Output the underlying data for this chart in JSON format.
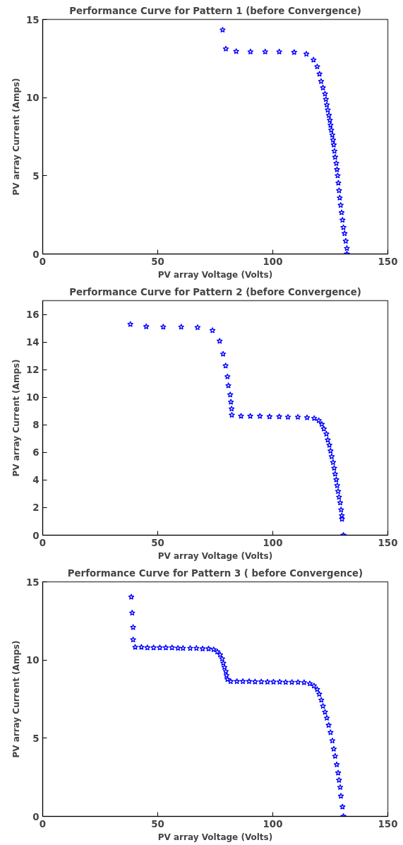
{
  "chart_data": [
    {
      "type": "scatter",
      "title": "Performance Curve for Pattern 1 (before Convergence)",
      "xlabel": "PV array Voltage (Volts)",
      "ylabel": "PV array Current (Amps)",
      "xlim": [
        0,
        150
      ],
      "ylim": [
        0,
        15
      ],
      "xticks": [
        0,
        50,
        100,
        150
      ],
      "yticks": [
        0,
        5,
        10,
        15
      ],
      "grid": false,
      "marker": "star",
      "series": [
        {
          "color": "#0000ff",
          "x": [
            78.2,
            79.6,
            84.1,
            90.3,
            96.7,
            102.8,
            109.3,
            114.6,
            117.7,
            119.3,
            120.3,
            121.0,
            121.8,
            122.7,
            123.1,
            123.5,
            123.9,
            124.4,
            124.8,
            125.1,
            125.4,
            125.9,
            126.2,
            126.5,
            126.8,
            127.1,
            127.6,
            127.9,
            128.2,
            128.5,
            128.8,
            129.1,
            129.5,
            129.9,
            130.3,
            130.7,
            131.2,
            131.7,
            132.2,
            132.2
          ],
          "values": [
            14.33,
            13.12,
            12.96,
            12.93,
            12.93,
            12.93,
            12.9,
            12.79,
            12.41,
            11.98,
            11.51,
            11.04,
            10.63,
            10.24,
            9.89,
            9.54,
            9.21,
            8.87,
            8.55,
            8.24,
            7.92,
            7.61,
            7.29,
            6.98,
            6.58,
            6.19,
            5.8,
            5.4,
            5.01,
            4.54,
            4.06,
            3.59,
            3.12,
            2.65,
            2.17,
            1.7,
            1.31,
            0.83,
            0.36,
            0
          ]
        }
      ]
    },
    {
      "type": "scatter",
      "title": "Performance Curve for Pattern 2 (before Convergence)",
      "xlabel": "PV array Voltage (Volts)",
      "ylabel": "PV array Current (Amps)",
      "xlim": [
        0,
        150
      ],
      "ylim": [
        0,
        17
      ],
      "xticks": [
        0,
        50,
        100,
        150
      ],
      "yticks": [
        0,
        2,
        4,
        6,
        8,
        10,
        12,
        14,
        16
      ],
      "grid": false,
      "marker": "star",
      "series": [
        {
          "color": "#0000ff",
          "x": [
            38.1,
            45.0,
            52.4,
            60.2,
            67.3,
            73.8,
            76.9,
            78.4,
            79.5,
            80.3,
            80.7,
            81.5,
            81.8,
            82.1,
            82.2,
            86.2,
            90.2,
            94.4,
            98.6,
            102.8,
            106.6,
            110.9,
            114.9,
            118.0,
            120.0,
            121.3,
            122.2,
            123.3,
            123.9,
            124.6,
            125.1,
            125.6,
            126.2,
            126.7,
            127.1,
            127.6,
            128.0,
            128.4,
            128.8,
            129.3,
            129.7,
            130.0,
            130.1,
            130.7
          ],
          "values": [
            15.29,
            15.12,
            15.09,
            15.09,
            15.06,
            14.84,
            14.07,
            13.13,
            12.28,
            11.49,
            10.84,
            10.18,
            9.65,
            9.16,
            8.71,
            8.63,
            8.63,
            8.63,
            8.59,
            8.59,
            8.56,
            8.56,
            8.52,
            8.47,
            8.31,
            8.04,
            7.71,
            7.34,
            6.9,
            6.53,
            6.11,
            5.7,
            5.28,
            4.86,
            4.44,
            4.02,
            3.6,
            3.18,
            2.76,
            2.35,
            1.84,
            1.42,
            1.17,
            0
          ]
        }
      ]
    },
    {
      "type": "scatter",
      "title": "Performance Curve for Pattern 3 ( before Convergence)",
      "xlabel": "PV array Voltage (Volts)",
      "ylabel": "PV array Current (Amps)",
      "xlim": [
        0,
        150
      ],
      "ylim": [
        0,
        15
      ],
      "xticks": [
        0,
        50,
        100,
        150
      ],
      "yticks": [
        0,
        5,
        10,
        15
      ],
      "grid": false,
      "marker": "star",
      "series": [
        {
          "color": "#0000ff",
          "x": [
            38.5,
            38.9,
            39.3,
            39.3,
            40.2,
            42.9,
            45.5,
            48.2,
            50.9,
            53.5,
            56.2,
            58.8,
            61.0,
            64.1,
            66.8,
            69.5,
            72.1,
            74.3,
            75.9,
            77.1,
            78.0,
            78.5,
            79.0,
            79.6,
            79.9,
            80.3,
            81.7,
            84.4,
            87.0,
            89.7,
            92.3,
            95.0,
            97.7,
            100.3,
            103.0,
            105.6,
            108.3,
            111.0,
            113.6,
            116.1,
            117.9,
            119.3,
            120.2,
            121.1,
            121.8,
            122.7,
            123.5,
            124.3,
            125.1,
            125.9,
            126.5,
            127.1,
            127.8,
            128.4,
            128.8,
            129.3,
            129.6,
            130.3,
            130.7
          ],
          "values": [
            14.03,
            13.01,
            12.09,
            11.3,
            10.82,
            10.82,
            10.79,
            10.79,
            10.79,
            10.79,
            10.79,
            10.76,
            10.75,
            10.75,
            10.75,
            10.72,
            10.72,
            10.67,
            10.53,
            10.34,
            10.08,
            9.8,
            9.53,
            9.27,
            9.01,
            8.76,
            8.63,
            8.63,
            8.63,
            8.63,
            8.61,
            8.61,
            8.6,
            8.6,
            8.6,
            8.58,
            8.58,
            8.58,
            8.56,
            8.49,
            8.35,
            8.12,
            7.82,
            7.44,
            7.05,
            6.67,
            6.29,
            5.83,
            5.37,
            4.84,
            4.31,
            3.85,
            3.31,
            2.78,
            2.32,
            1.86,
            1.3,
            0.61,
            0
          ]
        }
      ]
    }
  ]
}
